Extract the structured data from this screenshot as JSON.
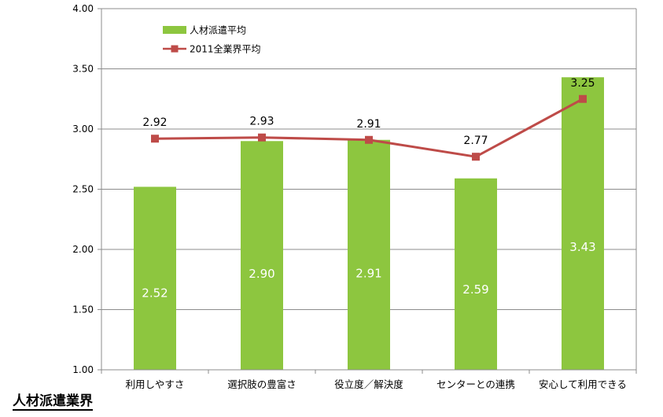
{
  "chart_data": {
    "type": "bar",
    "categories": [
      "利用しやすさ",
      "選択肢の豊富さ",
      "役立度／解決度",
      "センターとの連携",
      "安心して利用できる"
    ],
    "ylim": [
      1.0,
      4.0
    ],
    "yticks": [
      "1.00",
      "1.50",
      "2.00",
      "2.50",
      "3.00",
      "3.50",
      "4.00"
    ],
    "grid": true,
    "legend_position": "top-left",
    "series": [
      {
        "name": "人材派遣平均",
        "type": "bar",
        "color": "#8DC63F",
        "values": [
          2.52,
          2.9,
          2.91,
          2.59,
          3.43
        ],
        "labels": [
          "2.52",
          "2.90",
          "2.91",
          "2.59",
          "3.43"
        ]
      },
      {
        "name": "2011全業界平均",
        "type": "line",
        "color": "#BE4B48",
        "values": [
          2.92,
          2.93,
          2.91,
          2.77,
          3.25
        ],
        "labels": [
          "2.92",
          "2.93",
          "2.91",
          "2.77",
          "3.25"
        ]
      }
    ]
  },
  "section_heading": "人材派遣業界"
}
